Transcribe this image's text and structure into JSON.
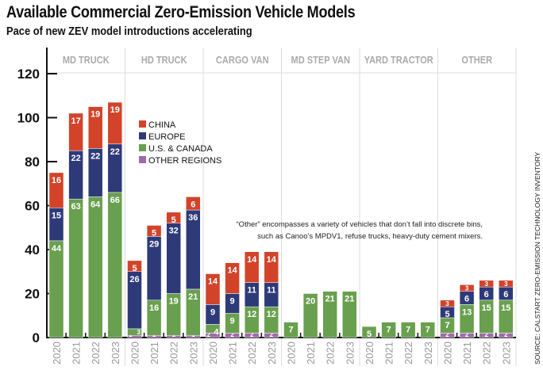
{
  "title": "Available Commercial Zero-Emission Vehicle Models",
  "subtitle": "Pace of new ZEV model introductions accelerating",
  "source": "SOURCE: CALSTART ZERO-EMISSION TECHNOLOGY INVENTORY",
  "annotation": [
    "“Other” encompasses a variety of vehicles that don’t fall into discrete bins,",
    "such as Canoo’s MPDV1, refuse trucks, heavy-duty cement mixers."
  ],
  "chart_data": {
    "type": "bar",
    "stacked": true,
    "title": "Available Commercial Zero-Emission Vehicle Models",
    "subtitle": "Pace of new ZEV model introductions accelerating",
    "ylim": [
      0,
      120
    ],
    "yticks": [
      0,
      20,
      40,
      60,
      80,
      100,
      120
    ],
    "legend_position": "top-left",
    "groups": [
      "MD TRUCK",
      "HD TRUCK",
      "CARGO VAN",
      "MD STEP VAN",
      "YARD TRACTOR",
      "OTHER"
    ],
    "years": [
      "2020",
      "2021",
      "2022",
      "2023"
    ],
    "series": [
      {
        "name": "OTHER REGIONS",
        "color": "#a06aa8",
        "values": [
          [
            0,
            0,
            0,
            0
          ],
          [
            1,
            1,
            1,
            1
          ],
          [
            2,
            2,
            2,
            2
          ],
          [
            0,
            0,
            0,
            0
          ],
          [
            0,
            0,
            0,
            0
          ],
          [
            2,
            2,
            2,
            2
          ]
        ]
      },
      {
        "name": "U.S. & CANADA",
        "color": "#69a04f",
        "values": [
          [
            44,
            63,
            64,
            66
          ],
          [
            3,
            16,
            19,
            21
          ],
          [
            4,
            9,
            12,
            12
          ],
          [
            7,
            20,
            21,
            21
          ],
          [
            5,
            7,
            7,
            7
          ],
          [
            7,
            13,
            15,
            15
          ]
        ]
      },
      {
        "name": "EUROPE",
        "color": "#2e3a78",
        "values": [
          [
            15,
            22,
            22,
            22
          ],
          [
            26,
            29,
            32,
            36
          ],
          [
            9,
            9,
            11,
            11
          ],
          [
            0,
            0,
            0,
            0
          ],
          [
            0,
            0,
            0,
            0
          ],
          [
            5,
            6,
            6,
            6
          ]
        ]
      },
      {
        "name": "CHINA",
        "color": "#d2432a",
        "values": [
          [
            16,
            17,
            19,
            19
          ],
          [
            5,
            5,
            5,
            6
          ],
          [
            14,
            14,
            14,
            14
          ],
          [
            0,
            0,
            0,
            0
          ],
          [
            0,
            0,
            0,
            0
          ],
          [
            3,
            3,
            3,
            3
          ]
        ]
      }
    ]
  }
}
